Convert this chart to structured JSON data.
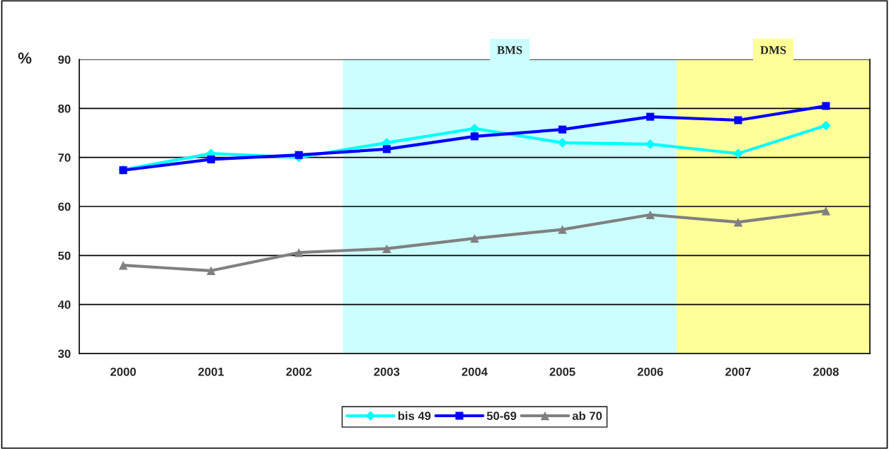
{
  "chart_data": {
    "type": "line",
    "ylabel": "%",
    "x": [
      2000,
      2001,
      2002,
      2003,
      2004,
      2005,
      2006,
      2007,
      2008
    ],
    "xlim": [
      1999.5,
      2008.5
    ],
    "xticks": [
      2000,
      2001,
      2002,
      2003,
      2004,
      2005,
      2006,
      2007,
      2008
    ],
    "ylim": [
      30,
      90
    ],
    "yticks": [
      30,
      40,
      50,
      60,
      70,
      80,
      90
    ],
    "grid": "y",
    "legend": "bottom",
    "series": [
      {
        "name": "bis 49",
        "color": "#00ffff",
        "marker": "diamond",
        "values": [
          67.5,
          70.8,
          70.0,
          73.0,
          75.9,
          73.0,
          72.7,
          70.8,
          76.5
        ]
      },
      {
        "name": "50-69",
        "color": "#0000ff",
        "marker": "square",
        "values": [
          67.4,
          69.6,
          70.5,
          71.7,
          74.3,
          75.7,
          78.3,
          77.6,
          80.5
        ]
      },
      {
        "name": "ab 70",
        "color": "#808080",
        "marker": "triangle",
        "values": [
          48.0,
          46.9,
          50.6,
          51.4,
          53.5,
          55.3,
          58.3,
          56.8,
          59.1
        ]
      }
    ],
    "bands": [
      {
        "axis": "x",
        "from": 2002.5,
        "to": 2006.3,
        "label": "BMS",
        "color": "#ccffff"
      },
      {
        "axis": "x",
        "from": 2006.3,
        "to": 2008.5,
        "label": "DMS",
        "color": "#ffff99"
      }
    ]
  }
}
